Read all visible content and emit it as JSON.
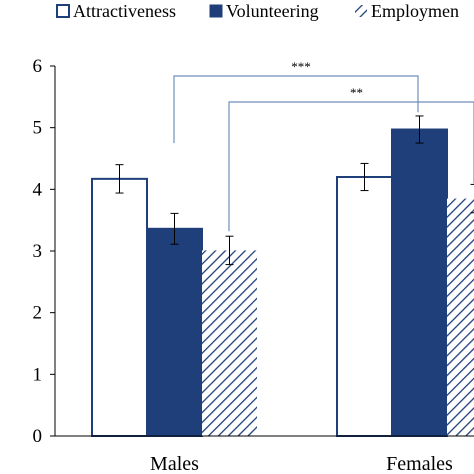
{
  "chart_data": {
    "type": "bar",
    "categories": [
      "Males",
      "Females"
    ],
    "series": [
      {
        "name": "Attractiveness",
        "values": [
          4.17,
          4.2
        ],
        "errors": [
          0.23,
          0.22
        ],
        "color": "#ffffff",
        "stroke": "#1f3f7a",
        "pattern": "none"
      },
      {
        "name": "Volunteering",
        "values": [
          3.36,
          4.97
        ],
        "errors": [
          0.25,
          0.22
        ],
        "color": "#1f3f7a",
        "stroke": "#1f3f7a",
        "pattern": "none"
      },
      {
        "name": "Employment",
        "values": [
          3.01,
          3.85
        ],
        "errors": [
          0.23,
          0.23
        ],
        "color": "#1f3f7a",
        "stroke": "#1f3f7a",
        "pattern": "diagonal-hatch"
      }
    ],
    "ylim": [
      0,
      6
    ],
    "yticks": [
      "0",
      "1",
      "2",
      "3",
      "4",
      "5",
      "6"
    ],
    "legend": {
      "placement": "top",
      "labels": [
        "Attractiveness",
        "Volunteering",
        "Employmen"
      ]
    },
    "annotations": [
      {
        "text": "***",
        "from_series": "Attractiveness",
        "to_series": "Volunteering"
      },
      {
        "text": "**",
        "from_series": "Employment",
        "to_series": "Employment"
      }
    ],
    "grid": false
  }
}
